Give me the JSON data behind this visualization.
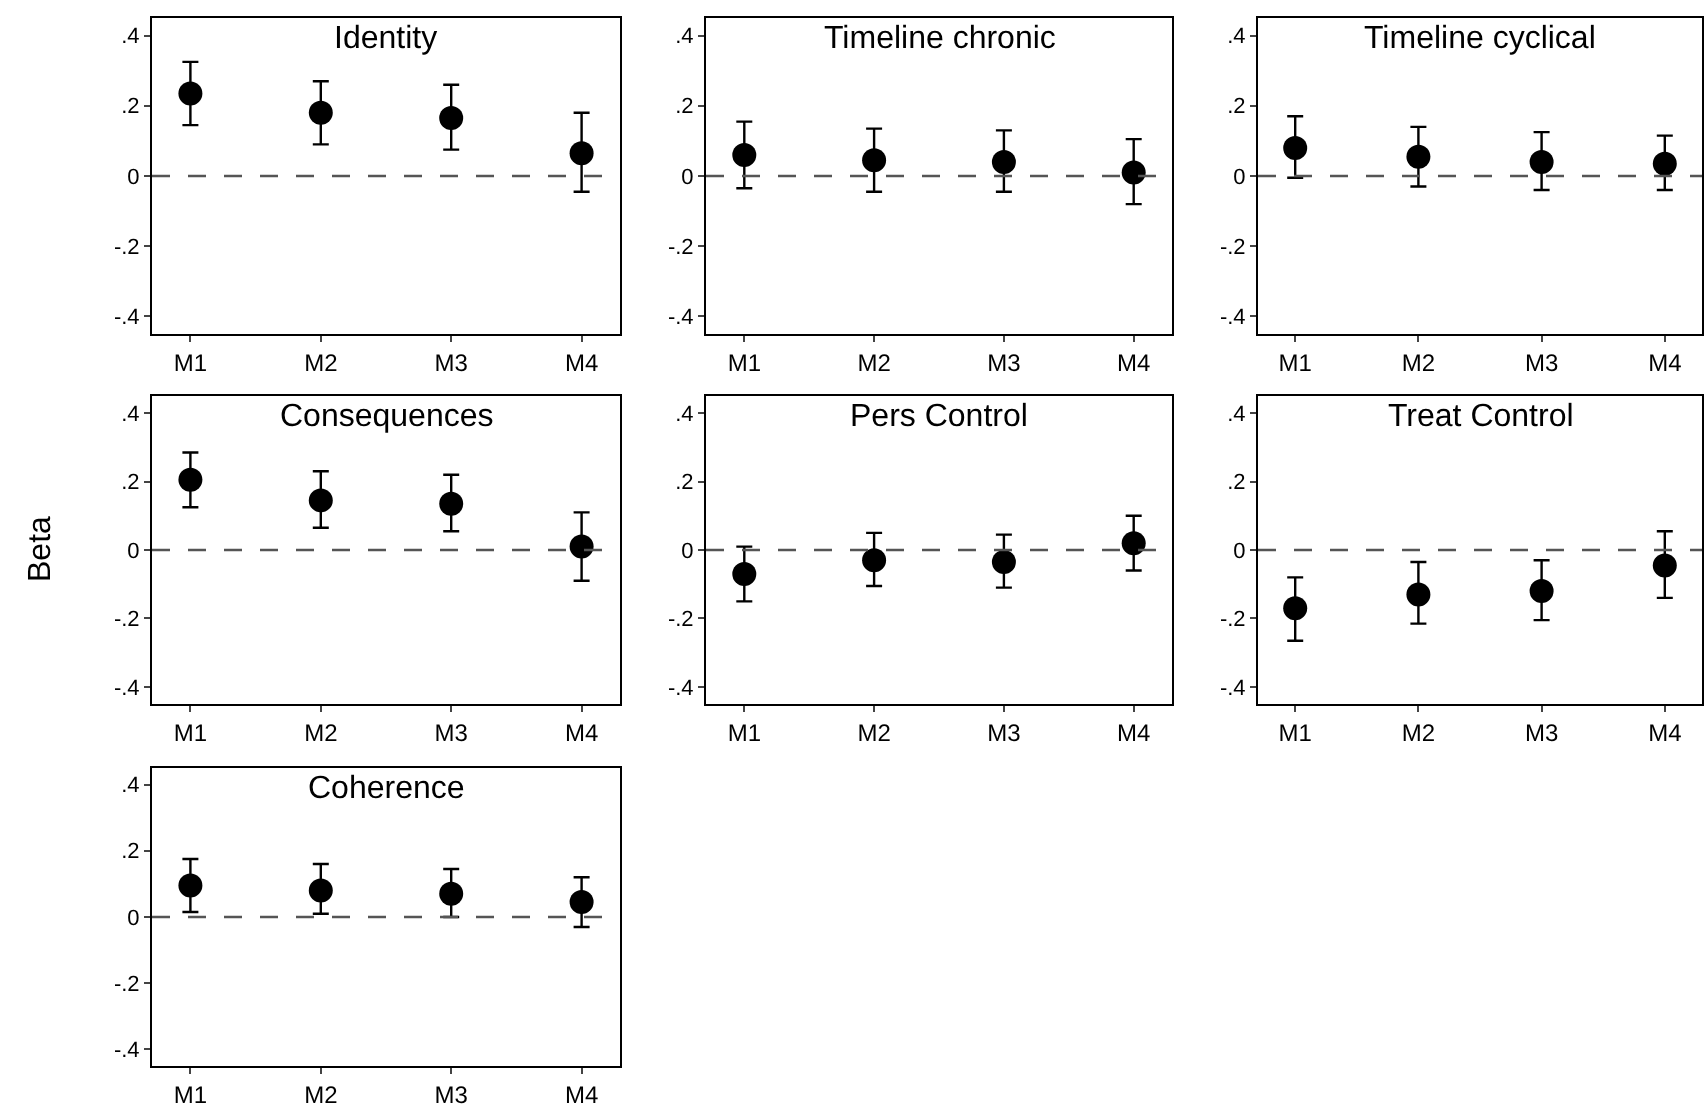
{
  "chart_data": [
    {
      "type": "scatter",
      "title": "Identity",
      "categories": [
        "M1",
        "M2",
        "M3",
        "M4"
      ],
      "values": [
        0.235,
        0.18,
        0.165,
        0.065
      ],
      "errors": [
        [
          0.145,
          0.325
        ],
        [
          0.09,
          0.27
        ],
        [
          0.075,
          0.26
        ],
        [
          -0.045,
          0.18
        ]
      ],
      "color": "#000000",
      "marker": "circle",
      "ylim": [
        -0.45,
        0.45
      ],
      "yticks": [
        {
          "value": -0.4,
          "label": "-.4"
        },
        {
          "value": -0.2,
          "label": "-.2"
        },
        0,
        {
          "value": 0.2,
          "label": ".2"
        },
        {
          "value": 0.4,
          "label": ".4"
        }
      ],
      "ref_lines": [
        {
          "axis": "y",
          "value": 0,
          "color": "#555555",
          "line_style": "dashed"
        }
      ]
    },
    {
      "type": "scatter",
      "title": "Timeline chronic",
      "categories": [
        "M1",
        "M2",
        "M3",
        "M4"
      ],
      "values": [
        0.06,
        0.045,
        0.04,
        0.01
      ],
      "errors": [
        [
          -0.035,
          0.155
        ],
        [
          -0.045,
          0.135
        ],
        [
          -0.045,
          0.13
        ],
        [
          -0.08,
          0.105
        ]
      ],
      "color": "#000000",
      "marker": "circle",
      "ylim": [
        -0.45,
        0.45
      ],
      "yticks": [
        {
          "value": -0.4,
          "label": "-.4"
        },
        {
          "value": -0.2,
          "label": "-.2"
        },
        0,
        {
          "value": 0.2,
          "label": ".2"
        },
        {
          "value": 0.4,
          "label": ".4"
        }
      ],
      "ref_lines": [
        {
          "axis": "y",
          "value": 0,
          "color": "#555555",
          "line_style": "dashed"
        }
      ]
    },
    {
      "type": "scatter",
      "title": "Timeline cyclical",
      "categories": [
        "M1",
        "M2",
        "M3",
        "M4"
      ],
      "values": [
        0.08,
        0.055,
        0.04,
        0.035
      ],
      "errors": [
        [
          -0.005,
          0.17
        ],
        [
          -0.03,
          0.14
        ],
        [
          -0.04,
          0.125
        ],
        [
          -0.04,
          0.115
        ]
      ],
      "color": "#000000",
      "marker": "circle",
      "ylim": [
        -0.45,
        0.45
      ],
      "yticks": [
        {
          "value": -0.4,
          "label": "-.4"
        },
        {
          "value": -0.2,
          "label": "-.2"
        },
        0,
        {
          "value": 0.2,
          "label": ".2"
        },
        {
          "value": 0.4,
          "label": ".4"
        }
      ],
      "ref_lines": [
        {
          "axis": "y",
          "value": 0,
          "color": "#555555",
          "line_style": "dashed"
        }
      ]
    },
    {
      "type": "scatter",
      "title": "Consequences",
      "ylabel": "Beta",
      "categories": [
        "M1",
        "M2",
        "M3",
        "M4"
      ],
      "values": [
        0.205,
        0.145,
        0.135,
        0.01
      ],
      "errors": [
        [
          0.125,
          0.285
        ],
        [
          0.065,
          0.23
        ],
        [
          0.055,
          0.22
        ],
        [
          -0.09,
          0.11
        ]
      ],
      "color": "#000000",
      "marker": "circle",
      "ylim": [
        -0.45,
        0.45
      ],
      "yticks": [
        {
          "value": -0.4,
          "label": "-.4"
        },
        {
          "value": -0.2,
          "label": "-.2"
        },
        0,
        {
          "value": 0.2,
          "label": ".2"
        },
        {
          "value": 0.4,
          "label": ".4"
        }
      ],
      "ref_lines": [
        {
          "axis": "y",
          "value": 0,
          "color": "#555555",
          "line_style": "dashed"
        }
      ]
    },
    {
      "type": "scatter",
      "title": "Pers Control",
      "categories": [
        "M1",
        "M2",
        "M3",
        "M4"
      ],
      "values": [
        -0.07,
        -0.03,
        -0.035,
        0.02
      ],
      "errors": [
        [
          -0.15,
          0.01
        ],
        [
          -0.105,
          0.05
        ],
        [
          -0.11,
          0.045
        ],
        [
          -0.06,
          0.1
        ]
      ],
      "color": "#000000",
      "marker": "circle",
      "ylim": [
        -0.45,
        0.45
      ],
      "yticks": [
        {
          "value": -0.4,
          "label": "-.4"
        },
        {
          "value": -0.2,
          "label": "-.2"
        },
        0,
        {
          "value": 0.2,
          "label": ".2"
        },
        {
          "value": 0.4,
          "label": ".4"
        }
      ],
      "ref_lines": [
        {
          "axis": "y",
          "value": 0,
          "color": "#555555",
          "line_style": "dashed"
        }
      ]
    },
    {
      "type": "scatter",
      "title": "Treat Control",
      "categories": [
        "M1",
        "M2",
        "M3",
        "M4"
      ],
      "values": [
        -0.17,
        -0.13,
        -0.12,
        -0.045
      ],
      "errors": [
        [
          -0.265,
          -0.08
        ],
        [
          -0.215,
          -0.035
        ],
        [
          -0.205,
          -0.03
        ],
        [
          -0.14,
          0.055
        ]
      ],
      "color": "#000000",
      "marker": "circle",
      "ylim": [
        -0.45,
        0.45
      ],
      "yticks": [
        {
          "value": -0.4,
          "label": "-.4"
        },
        {
          "value": -0.2,
          "label": "-.2"
        },
        0,
        {
          "value": 0.2,
          "label": ".2"
        },
        {
          "value": 0.4,
          "label": ".4"
        }
      ],
      "ref_lines": [
        {
          "axis": "y",
          "value": 0,
          "color": "#555555",
          "line_style": "dashed"
        }
      ]
    },
    {
      "type": "scatter",
      "title": "Coherence",
      "categories": [
        "M1",
        "M2",
        "M3",
        "M4"
      ],
      "values": [
        0.095,
        0.08,
        0.07,
        0.045
      ],
      "errors": [
        [
          0.015,
          0.175
        ],
        [
          0.01,
          0.16
        ],
        [
          0,
          0.145
        ],
        [
          -0.03,
          0.12
        ]
      ],
      "color": "#000000",
      "marker": "circle",
      "ylim": [
        -0.45,
        0.45
      ],
      "yticks": [
        {
          "value": -0.4,
          "label": "-.4"
        },
        {
          "value": -0.2,
          "label": "-.2"
        },
        0,
        {
          "value": 0.2,
          "label": ".2"
        },
        {
          "value": 0.4,
          "label": ".4"
        }
      ],
      "ref_lines": [
        {
          "axis": "y",
          "value": 0,
          "color": "#555555",
          "line_style": "dashed"
        }
      ]
    }
  ]
}
